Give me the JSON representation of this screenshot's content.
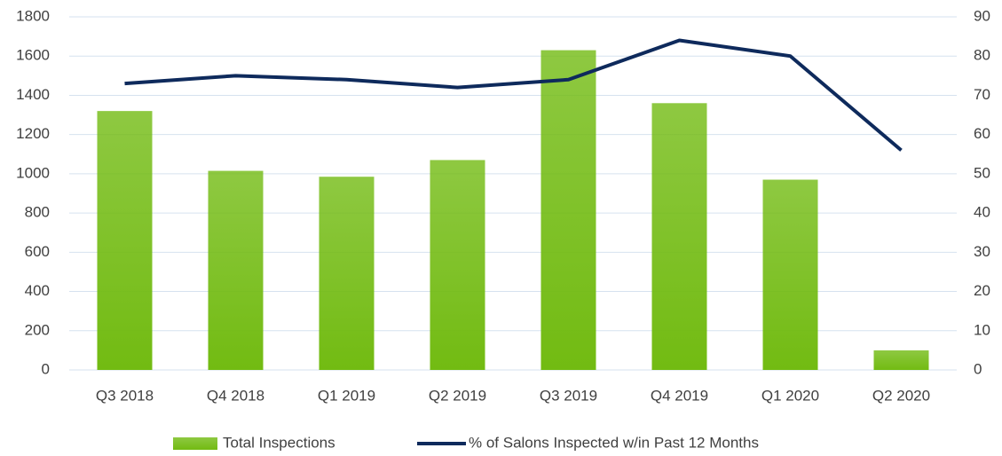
{
  "chart_data": {
    "type": "bar",
    "categories": [
      "Q3 2018",
      "Q4 2018",
      "Q1 2019",
      "Q2 2019",
      "Q3 2019",
      "Q4 2019",
      "Q1 2020",
      "Q2 2020"
    ],
    "series": [
      {
        "name": "Total Inspections",
        "type": "bar",
        "color": "#72bb12",
        "values": [
          1320,
          1015,
          985,
          1070,
          1630,
          1360,
          970,
          100
        ]
      },
      {
        "name": "% of Salons Inspected w/in Past 12 Months",
        "type": "line",
        "axis": "y2",
        "color": "#0e2a5c",
        "values": [
          73,
          75,
          74,
          72,
          74,
          84,
          80,
          56
        ]
      }
    ],
    "ylim": [
      0,
      1800
    ],
    "yticks": [
      0,
      200,
      400,
      600,
      800,
      1000,
      1200,
      1400,
      1600,
      1800
    ],
    "y2lim": [
      0,
      90
    ],
    "y2ticks": [
      0,
      10,
      20,
      30,
      40,
      50,
      60,
      70,
      80,
      90
    ],
    "grid": true,
    "legend": "bottom"
  }
}
